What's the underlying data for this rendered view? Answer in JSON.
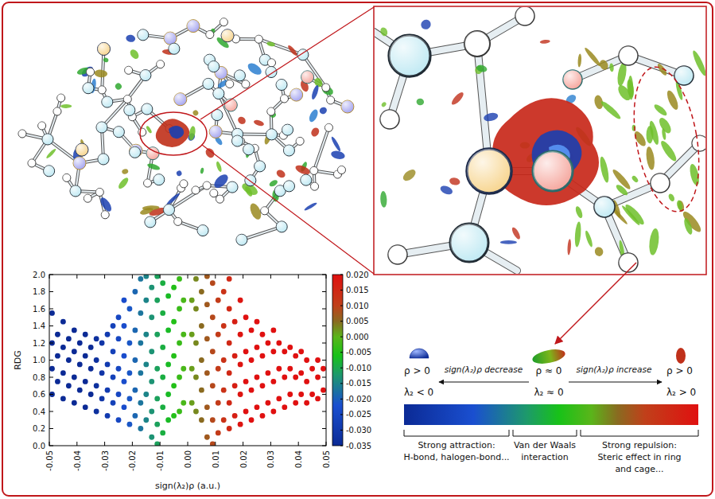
{
  "chart_data": {
    "type": "scatter",
    "xlabel": "sign(λ₂)ρ (a.u.)",
    "ylabel": "RDG",
    "xlim": [
      -0.05,
      0.05
    ],
    "ylim": [
      0,
      2
    ],
    "xticks": [
      -0.05,
      -0.04,
      -0.03,
      -0.02,
      -0.01,
      {
        "value": 0,
        "label": "0.00"
      },
      0.01,
      0.02,
      0.03,
      0.04,
      0.05
    ],
    "yticks": [
      {
        "value": 0,
        "label": "0.0"
      },
      0.2,
      0.4,
      0.6,
      0.8,
      {
        "value": 1,
        "label": "1.0"
      },
      1.2,
      1.4,
      1.6,
      1.8,
      {
        "value": 2,
        "label": "2.0"
      }
    ],
    "colorbar": {
      "range": [
        -0.035,
        0.02
      ],
      "ticks": [
        {
          "value": 0.02,
          "label": "0.020"
        },
        0.015,
        {
          "value": 0.01,
          "label": "0.010"
        },
        0.005,
        {
          "value": 0,
          "label": "0.000"
        },
        -0.005,
        {
          "value": -0.01,
          "label": "-0.010"
        },
        -0.015,
        {
          "value": -0.02,
          "label": "-0.020"
        },
        -0.025,
        {
          "value": -0.03,
          "label": "-0.030"
        },
        -0.035
      ]
    },
    "marker": "dot",
    "x": [
      -0.049,
      -0.049,
      -0.049,
      -0.049,
      -0.047,
      -0.047,
      -0.047,
      -0.045,
      -0.045,
      -0.045,
      -0.045,
      -0.043,
      -0.043,
      -0.043,
      -0.041,
      -0.041,
      -0.041,
      -0.041,
      -0.039,
      -0.039,
      -0.039,
      -0.037,
      -0.037,
      -0.037,
      -0.037,
      -0.035,
      -0.035,
      -0.035,
      -0.033,
      -0.033,
      -0.033,
      -0.033,
      -0.031,
      -0.031,
      -0.031,
      -0.029,
      -0.029,
      -0.029,
      -0.029,
      -0.027,
      -0.027,
      -0.027,
      -0.027,
      -0.025,
      -0.025,
      -0.025,
      -0.025,
      -0.025,
      -0.023,
      -0.023,
      -0.023,
      -0.023,
      -0.023,
      -0.021,
      -0.021,
      -0.021,
      -0.021,
      -0.021,
      -0.019,
      -0.019,
      -0.019,
      -0.019,
      -0.019,
      -0.017,
      -0.017,
      -0.017,
      -0.017,
      -0.017,
      -0.017,
      -0.015,
      -0.015,
      -0.015,
      -0.015,
      -0.015,
      -0.015,
      -0.013,
      -0.013,
      -0.013,
      -0.013,
      -0.013,
      -0.013,
      -0.011,
      -0.011,
      -0.011,
      -0.011,
      -0.011,
      -0.011,
      -0.011,
      -0.009,
      -0.009,
      -0.009,
      -0.009,
      -0.009,
      -0.009,
      -0.007,
      -0.007,
      -0.007,
      -0.007,
      -0.007,
      -0.005,
      -0.005,
      -0.005,
      -0.005,
      -0.005,
      -0.003,
      -0.003,
      -0.003,
      -0.003,
      -0.003,
      -0.0015,
      -0.0015,
      -0.0015,
      -0.0015,
      0.0015,
      0.0015,
      0.0015,
      0.0015,
      0.003,
      0.003,
      0.003,
      0.003,
      0.003,
      0.005,
      0.005,
      0.005,
      0.005,
      0.005,
      0.007,
      0.007,
      0.007,
      0.007,
      0.007,
      0.007,
      0.009,
      0.009,
      0.009,
      0.009,
      0.009,
      0.009,
      0.011,
      0.011,
      0.011,
      0.011,
      0.011,
      0.013,
      0.013,
      0.013,
      0.013,
      0.013,
      0.015,
      0.015,
      0.015,
      0.015,
      0.015,
      0.015,
      0.017,
      0.017,
      0.017,
      0.017,
      0.019,
      0.019,
      0.019,
      0.019,
      0.019,
      0.021,
      0.021,
      0.021,
      0.021,
      0.023,
      0.023,
      0.023,
      0.023,
      0.025,
      0.025,
      0.025,
      0.025,
      0.027,
      0.027,
      0.027,
      0.027,
      0.029,
      0.029,
      0.029,
      0.031,
      0.031,
      0.031,
      0.031,
      0.033,
      0.033,
      0.033,
      0.035,
      0.035,
      0.035,
      0.037,
      0.037,
      0.037,
      0.039,
      0.039,
      0.039,
      0.041,
      0.041,
      0.041,
      0.043,
      0.043,
      0.043,
      0.045,
      0.045,
      0.047,
      0.047,
      0.047,
      0.049,
      0.049
    ],
    "values": [
      0.6,
      0.9,
      1.2,
      1.55,
      0.75,
      1.05,
      1.3,
      0.55,
      0.85,
      1.15,
      1.45,
      0.7,
      1.0,
      1.25,
      0.5,
      0.8,
      1.1,
      1.35,
      0.65,
      0.95,
      1.2,
      0.45,
      0.75,
      1.05,
      1.3,
      0.6,
      0.9,
      1.15,
      0.4,
      0.7,
      1.0,
      1.25,
      0.55,
      0.85,
      1.2,
      0.35,
      0.65,
      0.95,
      1.3,
      0.5,
      0.8,
      1.1,
      1.4,
      0.3,
      0.6,
      0.9,
      1.25,
      1.5,
      0.45,
      0.75,
      1.05,
      1.4,
      1.7,
      0.25,
      0.55,
      0.85,
      1.2,
      1.6,
      0.35,
      0.65,
      1.0,
      1.35,
      1.8,
      0.2,
      0.5,
      0.85,
      1.2,
      1.55,
      1.95,
      0.3,
      0.6,
      0.95,
      1.3,
      1.7,
      1.98,
      0.1,
      0.4,
      0.75,
      1.1,
      1.5,
      1.85,
      0.02,
      0.25,
      0.55,
      0.9,
      1.3,
      1.7,
      1.98,
      0.15,
      0.45,
      0.8,
      1.15,
      1.55,
      1.9,
      0.3,
      0.6,
      0.95,
      1.35,
      1.75,
      0.35,
      0.7,
      1.05,
      1.45,
      1.85,
      0.4,
      0.8,
      1.2,
      1.6,
      1.95,
      0.5,
      0.9,
      1.3,
      1.7,
      0.5,
      0.9,
      1.3,
      1.7,
      0.4,
      0.8,
      1.2,
      1.6,
      1.95,
      0.3,
      0.65,
      1.0,
      1.4,
      1.8,
      0.1,
      0.45,
      0.85,
      1.25,
      1.65,
      1.98,
      0.02,
      0.3,
      0.7,
      1.1,
      1.5,
      1.9,
      0.15,
      0.5,
      0.9,
      1.3,
      1.7,
      0.3,
      0.65,
      1.0,
      1.4,
      1.8,
      0.2,
      0.5,
      0.85,
      1.2,
      1.6,
      1.95,
      0.35,
      0.7,
      1.05,
      1.45,
      0.25,
      0.6,
      0.95,
      1.3,
      1.7,
      0.4,
      0.75,
      1.1,
      1.5,
      0.3,
      0.65,
      1.0,
      1.35,
      0.45,
      0.8,
      1.15,
      1.45,
      0.35,
      0.7,
      1.05,
      1.3,
      0.5,
      0.85,
      1.2,
      0.4,
      0.75,
      1.1,
      1.35,
      0.55,
      0.9,
      1.2,
      0.45,
      0.8,
      1.1,
      0.6,
      0.9,
      1.15,
      0.5,
      0.8,
      1.05,
      0.6,
      0.85,
      1.1,
      0.5,
      0.75,
      1.0,
      0.6,
      0.9,
      0.55,
      0.8,
      1.0,
      0.65,
      0.9
    ]
  },
  "diagram": {
    "scale": {
      "left": {
        "rho": "ρ > 0",
        "lambda": "λ₂ < 0"
      },
      "left_arrow": "sign(λ₂)ρ decrease",
      "middle": {
        "rho": "ρ ≈ 0",
        "lambda": "λ₂ ≈ 0"
      },
      "right_arrow": "sign(λ₂)ρ increase",
      "right": {
        "rho": "ρ > 0",
        "lambda": "λ₂ > 0"
      }
    },
    "categories": [
      {
        "lines": [
          "Strong attraction:",
          "H-bond, halogen-bond..."
        ]
      },
      {
        "lines": [
          "Van der Waals",
          "interaction"
        ]
      },
      {
        "lines": [
          "Strong repulsion:",
          "Steric effect in ring",
          "and cage..."
        ]
      }
    ]
  }
}
